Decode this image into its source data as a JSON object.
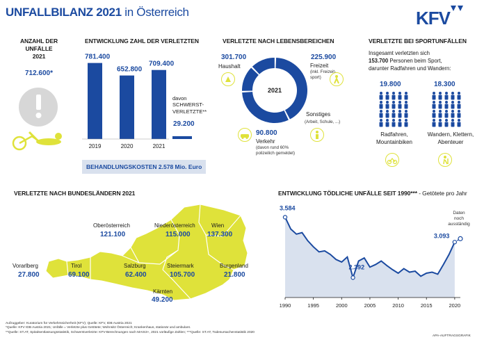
{
  "header": {
    "title_bold": "UNFALLBILANZ 2021",
    "title_light": "in Österreich",
    "logo_text": "KFV",
    "brand_color": "#1b4aa0",
    "accent_color": "#dfe23a"
  },
  "accidents": {
    "heading_line1": "ANZAHL DER",
    "heading_line2": "UNFÄLLE",
    "heading_line3": "2021",
    "value": "712.600*"
  },
  "injured_trend": {
    "heading": "ENTWICKLUNG ZAHL DER VERLETZTEN",
    "serious_label_1": "davon",
    "serious_label_2": "SCHWERST-",
    "serious_label_3": "VERLETZTE**",
    "serious_value": "29.200",
    "treatment_label": "BEHANDLUNGSKOSTEN",
    "treatment_value": "2.578 Mio. Euro"
  },
  "life_areas": {
    "heading": "VERLETZTE NACH LEBENSBEREICHEN",
    "center_label": "2021",
    "household_value": "301.700",
    "household_label": "Haushalt",
    "leisure_value": "225.900",
    "leisure_label": "Freizeit",
    "leisure_note_1": "(inkl. Freizeit-",
    "leisure_note_2": "sport)",
    "other_label": "Sonstiges",
    "other_note": "(Arbeit, Schule, ...)",
    "traffic_value": "90.800",
    "traffic_label": "Verkehr",
    "traffic_note_1": "(davon rund 60%",
    "traffic_note_2": "polizeilich gemeldet)"
  },
  "sports": {
    "heading": "VERLETZTE BEI SPORTUNFÄLLEN",
    "intro_1": "Insgesamt verletzten sich",
    "intro_2_bold": "153.700",
    "intro_2_rest": "Personen beim Sport,",
    "intro_3": "darunter Radfahren und Wandern:",
    "cycling_value": "19.800",
    "cycling_label_1": "Radfahren,",
    "cycling_label_2": "Mountainbiken",
    "hiking_value": "18.300",
    "hiking_label_1": "Wandern, Klettern,",
    "hiking_label_2": "Abenteuer"
  },
  "states": {
    "heading": "VERLETZTE NACH BUNDESLÄNDERN 2021",
    "items": [
      {
        "name": "Oberösterreich",
        "value": "121.100"
      },
      {
        "name": "Niederösterreich",
        "value": "115.000"
      },
      {
        "name": "Wien",
        "value": "137.300"
      },
      {
        "name": "Vorarlberg",
        "value": "27.800"
      },
      {
        "name": "Tirol",
        "value": "69.100"
      },
      {
        "name": "Salzburg",
        "value": "62.400"
      },
      {
        "name": "Steiermark",
        "value": "105.700"
      },
      {
        "name": "Burgenland",
        "value": "21.800"
      },
      {
        "name": "Kärnten",
        "value": "49.200"
      }
    ]
  },
  "fatal": {
    "heading_bold": "ENTWICKLUNG TÖDLICHE UNFÄLLE SEIT 1990***",
    "heading_light": "- Getötete pro Jahr",
    "note_1": "Daten",
    "note_2": "noch",
    "note_3": "ausständig"
  },
  "footer": {
    "line1": "Aufzuggeber: Kuratorium für Verkehrssicherheit (KFV); Quelle: KFV, IDB Austria 2021",
    "line2": "*Quelle: KFV IDB Austria 2021; Unfälle = Verletzte plus Getötete; Wohnsitz Österreich; Krankenhaus, stationär und ambulant.",
    "line3": "**Quelle: ST.AT, Spitalsentlassungsstatistik, Schwerstverletzte: KFV-Berechnungen nach MAIS3+, 2021 vorläufige Zahlen; ***Quelle: ST.AT, Todesursachenstatistik 2020",
    "credit": "APA-AUFTRAGSGRAFIK"
  },
  "chart_data": [
    {
      "type": "bar",
      "title": "ENTWICKLUNG ZAHL DER VERLETZTEN",
      "categories": [
        "2019",
        "2020",
        "2021"
      ],
      "values": [
        781400,
        652800,
        709400
      ],
      "labels": [
        "781.400",
        "652.800",
        "709.400"
      ],
      "extra_bar": {
        "value": 29200,
        "label": "29.200"
      },
      "ylim": [
        0,
        800000
      ]
    },
    {
      "type": "pie",
      "title": "VERLETZTE NACH LEBENSBEREICHEN",
      "center": "2021",
      "slices": [
        {
          "name": "Haushalt",
          "value": 301700
        },
        {
          "name": "Freizeit",
          "value": 225900
        },
        {
          "name": "Sonstiges",
          "value": 94200
        },
        {
          "name": "Verkehr",
          "value": 90800
        }
      ]
    },
    {
      "type": "line",
      "title": "ENTWICKLUNG TÖDLICHE UNFÄLLE SEIT 1990***",
      "x": [
        1990,
        1991,
        1992,
        1993,
        1994,
        1995,
        1996,
        1997,
        1998,
        1999,
        2000,
        2001,
        2002,
        2003,
        2004,
        2005,
        2006,
        2007,
        2008,
        2009,
        2010,
        2011,
        2012,
        2013,
        2014,
        2015,
        2016,
        2017,
        2018,
        2019,
        2020
      ],
      "values": [
        3584,
        3350,
        3250,
        3280,
        3120,
        3000,
        2900,
        2920,
        2850,
        2750,
        2700,
        2800,
        2392,
        2720,
        2780,
        2600,
        2650,
        2720,
        2630,
        2550,
        2480,
        2570,
        2500,
        2520,
        2420,
        2480,
        2500,
        2460,
        2650,
        2850,
        3093
      ],
      "labeled_points": [
        {
          "x": 1990,
          "label": "3.584"
        },
        {
          "x": 2002,
          "label": "2.392"
        },
        {
          "x": 2020,
          "label": "3.093"
        }
      ],
      "xticks": [
        "1990",
        "1995",
        "2000",
        "2005",
        "2010",
        "2015",
        "2020"
      ],
      "xlim": [
        1990,
        2021
      ],
      "ylim": [
        2000,
        3700
      ]
    }
  ]
}
